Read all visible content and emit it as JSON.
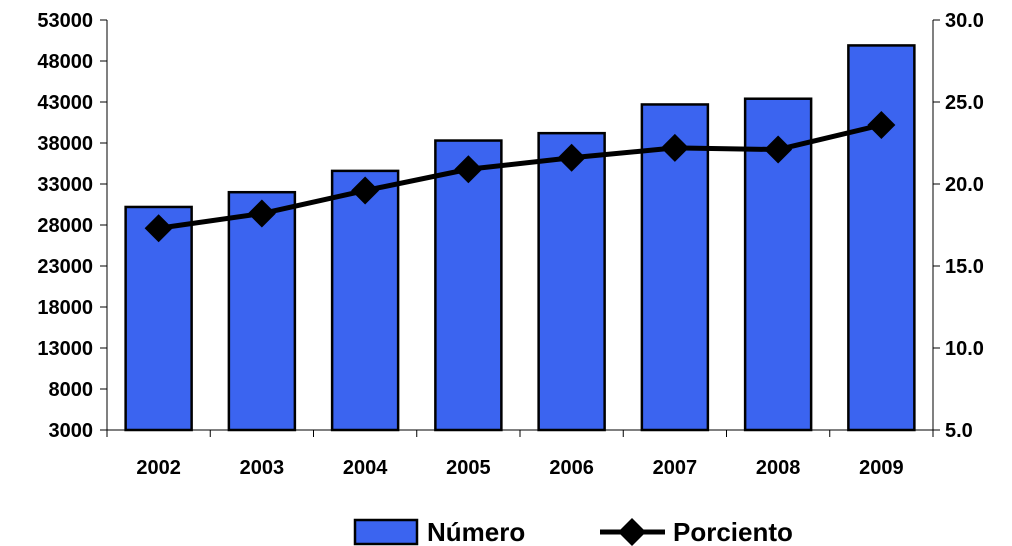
{
  "chart_data": {
    "type": "bar",
    "categories": [
      "2002",
      "2003",
      "2004",
      "2005",
      "2006",
      "2007",
      "2008",
      "2009"
    ],
    "series": [
      {
        "name": "Número",
        "type": "bar",
        "axis": "left",
        "color": "#3b64f0",
        "values": [
          30200,
          32000,
          34600,
          38300,
          39200,
          42700,
          43400,
          49900
        ]
      },
      {
        "name": "Porciento",
        "type": "line",
        "axis": "right",
        "color": "#000000",
        "marker": "diamond",
        "values": [
          17.3,
          18.2,
          19.6,
          20.9,
          21.6,
          22.2,
          22.1,
          23.6
        ]
      }
    ],
    "y_left": {
      "ylim": [
        3000,
        53000
      ],
      "ticks": [
        "3000",
        "8000",
        "13000",
        "18000",
        "23000",
        "28000",
        "33000",
        "38000",
        "43000",
        "48000",
        "53000"
      ]
    },
    "y_right": {
      "ylim": [
        5.0,
        30.0
      ],
      "ticks": [
        "5.0",
        "10.0",
        "15.0",
        "20.0",
        "25.0",
        "30.0"
      ]
    },
    "grid": false,
    "legend": {
      "position": "bottom",
      "items": [
        {
          "label": "Número",
          "symbol": "bar-swatch"
        },
        {
          "label": "Porciento",
          "symbol": "line-diamond"
        }
      ]
    }
  }
}
